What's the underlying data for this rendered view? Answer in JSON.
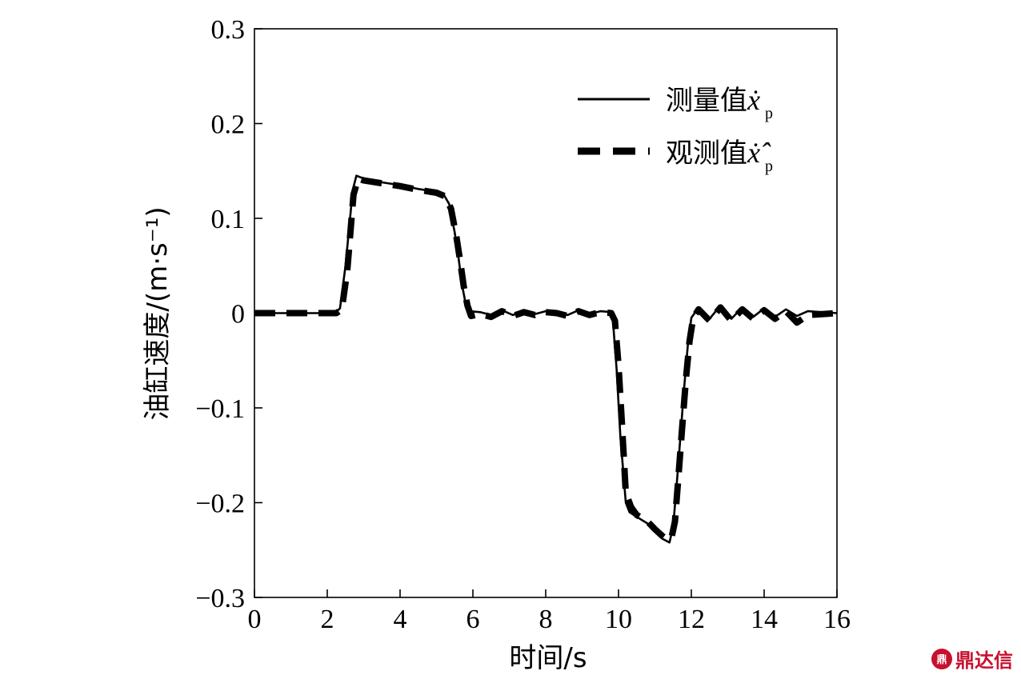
{
  "chart_data": {
    "type": "line",
    "xlabel": "时间/s",
    "ylabel": "油缸速度/(m·s⁻¹)",
    "xlim": [
      0,
      16
    ],
    "ylim": [
      -0.3,
      0.3
    ],
    "x_ticks": [
      0,
      2,
      4,
      6,
      8,
      10,
      12,
      14,
      16
    ],
    "y_ticks": [
      0.3,
      0.2,
      0.1,
      0,
      -0.1,
      -0.2,
      -0.3
    ],
    "x_tick_labels": [
      "0",
      "2",
      "4",
      "6",
      "8",
      "10",
      "12",
      "14",
      "16"
    ],
    "y_tick_labels": [
      "0.3",
      "0.2",
      "0.1",
      "0",
      "−0.1",
      "−0.2",
      "−0.3"
    ],
    "legend_position": "top-right",
    "grid": false,
    "series": [
      {
        "name": "测量值",
        "legend_symbol": "ẋ",
        "legend_subscript": "p",
        "style": "solid",
        "color": "#000000",
        "x": [
          0,
          2.2,
          2.35,
          2.5,
          2.7,
          2.8,
          3.0,
          3.5,
          4.0,
          4.5,
          5.0,
          5.2,
          5.35,
          5.5,
          5.6,
          5.7,
          5.8,
          5.9,
          6.2,
          6.5,
          6.8,
          7.1,
          7.4,
          7.7,
          8.0,
          8.3,
          8.6,
          8.9,
          9.2,
          9.5,
          9.8,
          9.85,
          9.95,
          10.05,
          10.2,
          10.3,
          10.5,
          10.8,
          11.0,
          11.2,
          11.3,
          11.4,
          11.5,
          11.6,
          11.7,
          11.8,
          11.9,
          12.0,
          12.2,
          12.5,
          12.8,
          13.1,
          13.4,
          13.7,
          14.0,
          14.3,
          14.6,
          14.9,
          15.2,
          15.6,
          16.0
        ],
        "y": [
          0,
          0,
          0.005,
          0.05,
          0.13,
          0.145,
          0.142,
          0.138,
          0.135,
          0.131,
          0.128,
          0.125,
          0.115,
          0.085,
          0.06,
          0.03,
          0.01,
          0.002,
          0.001,
          -0.002,
          0.003,
          -0.002,
          0.002,
          -0.001,
          0.002,
          0.001,
          -0.002,
          0.003,
          -0.001,
          0.002,
          0.001,
          -0.01,
          -0.06,
          -0.13,
          -0.2,
          -0.21,
          -0.215,
          -0.222,
          -0.23,
          -0.238,
          -0.24,
          -0.242,
          -0.225,
          -0.18,
          -0.13,
          -0.08,
          -0.035,
          -0.005,
          0.006,
          -0.006,
          0.008,
          -0.006,
          0.006,
          -0.004,
          0.005,
          -0.004,
          0.004,
          -0.003,
          0.002,
          0.001,
          0
        ]
      },
      {
        "name": "观测值",
        "legend_symbol": "ẋ̂",
        "legend_subscript": "p",
        "style": "dashed",
        "color": "#000000",
        "x": [
          0,
          2.25,
          2.4,
          2.55,
          2.72,
          2.85,
          3.0,
          3.5,
          4.0,
          4.5,
          5.0,
          5.25,
          5.4,
          5.55,
          5.65,
          5.75,
          5.85,
          5.95,
          6.2,
          6.5,
          6.8,
          7.1,
          7.4,
          7.7,
          8.0,
          8.3,
          8.6,
          8.9,
          9.2,
          9.5,
          9.8,
          9.9,
          10.0,
          10.1,
          10.2,
          10.35,
          10.5,
          10.8,
          11.0,
          11.2,
          11.3,
          11.45,
          11.55,
          11.65,
          11.75,
          11.85,
          11.95,
          12.05,
          12.2,
          12.5,
          12.8,
          13.1,
          13.4,
          13.7,
          14.0,
          14.3,
          14.6,
          14.9,
          15.2,
          15.6,
          16.0
        ],
        "y": [
          0,
          0,
          0.004,
          0.045,
          0.125,
          0.142,
          0.14,
          0.137,
          0.134,
          0.13,
          0.127,
          0.123,
          0.11,
          0.08,
          0.055,
          0.028,
          0.008,
          -0.003,
          -0.001,
          -0.004,
          0.002,
          -0.003,
          0.001,
          -0.002,
          0.001,
          0,
          -0.003,
          0.002,
          -0.002,
          0.001,
          0,
          -0.008,
          -0.055,
          -0.12,
          -0.19,
          -0.205,
          -0.213,
          -0.22,
          -0.228,
          -0.235,
          -0.238,
          -0.238,
          -0.22,
          -0.17,
          -0.12,
          -0.07,
          -0.03,
          -0.005,
          0.004,
          -0.008,
          0.006,
          -0.008,
          0.004,
          -0.006,
          0.003,
          -0.006,
          0.002,
          -0.01,
          -0.002,
          -0.001,
          0
        ]
      }
    ]
  },
  "watermark": {
    "logo_text": "鼎",
    "text": "鼎达信"
  }
}
